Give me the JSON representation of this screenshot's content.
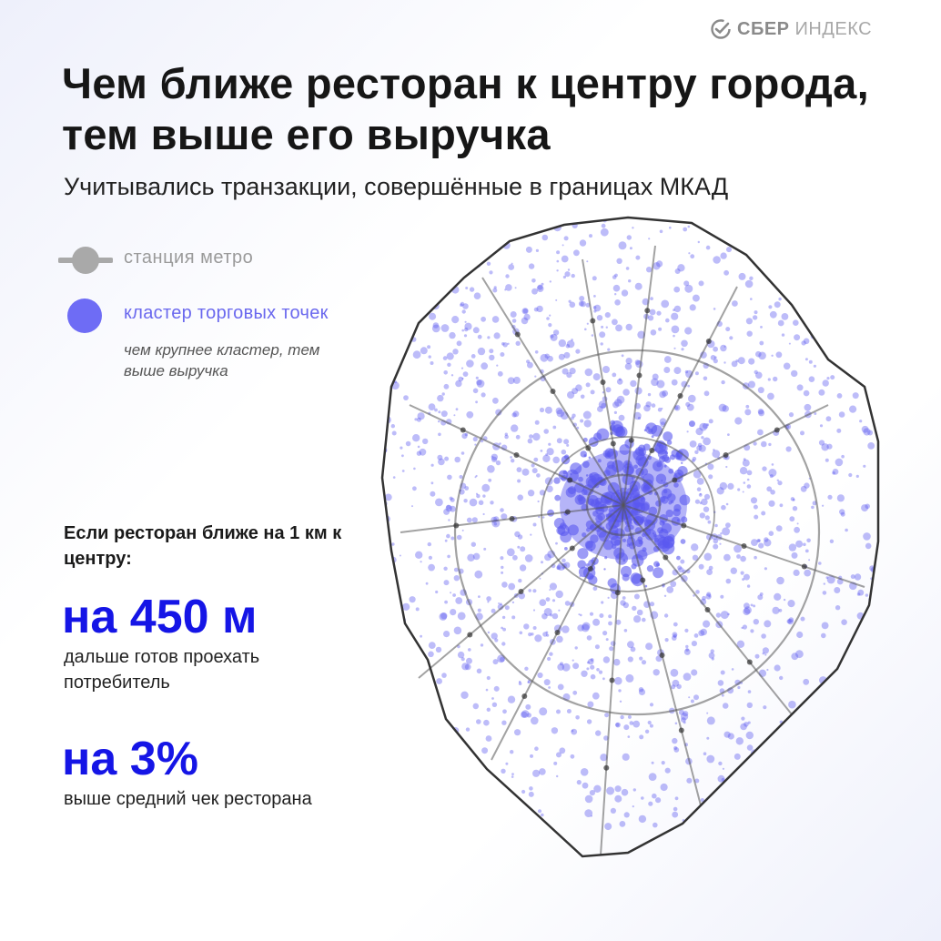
{
  "brand": {
    "part1": "СБЕР",
    "part2": "ИНДЕКС",
    "icon": "sber-check-icon"
  },
  "title": "Чем ближе ресторан к центру города, тем выше его выручка",
  "subtitle": "Учитывались транзакции, совершённые в границах МКАД",
  "legend": {
    "metro_label": "станция метро",
    "cluster_label": "кластер торговых точек",
    "cluster_note": "чем крупнее кластер, тем выше выручка"
  },
  "stats": {
    "intro": "Если ресторан ближе на 1 км к центру:",
    "items": [
      {
        "value": "на 450 м",
        "description": "дальше готов проехать потребитель"
      },
      {
        "value": "на 3%",
        "description": "выше средний чек ресторана"
      }
    ]
  },
  "colors": {
    "accent": "#1515e6",
    "cluster": "#6e6cf5",
    "metro": "#555555",
    "boundary": "#333333"
  }
}
